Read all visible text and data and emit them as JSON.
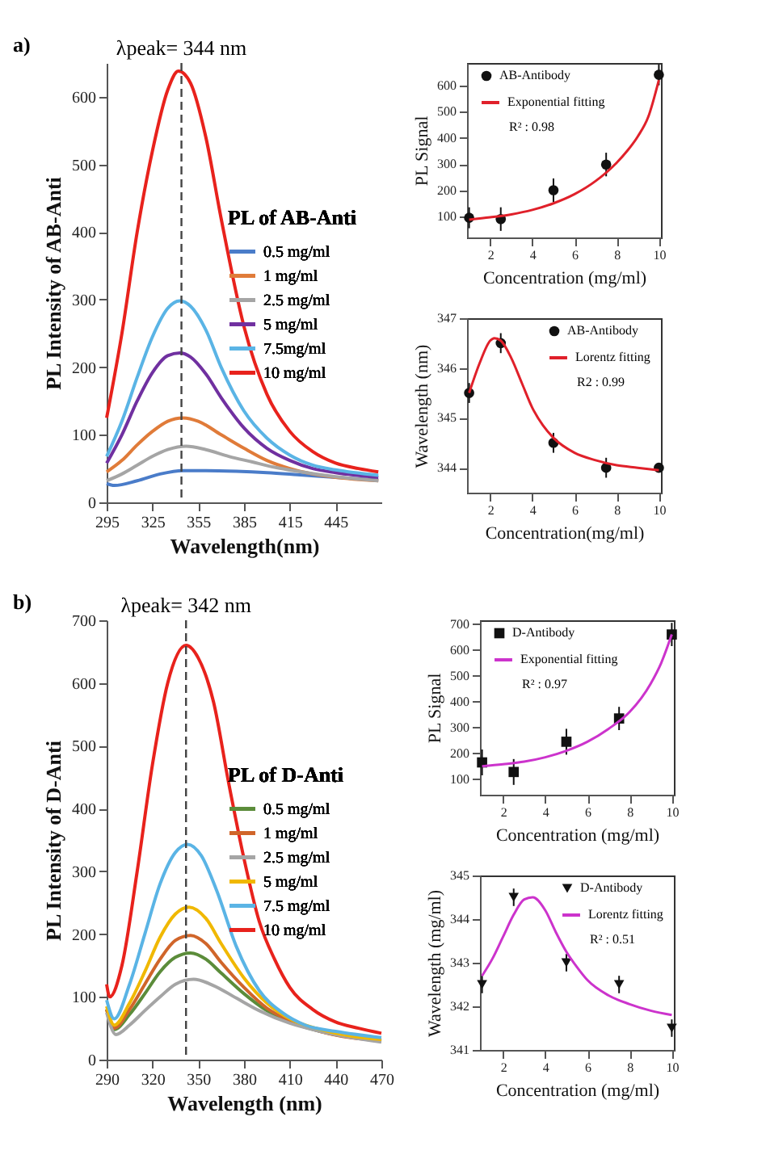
{
  "chart_data": [
    {
      "type": "line",
      "xlabel": "Wavelength(nm)",
      "ylabel": "PL Intensity of AB-Anti",
      "legend_title": "PL of AB-Anti",
      "legend": "right",
      "grid": false,
      "xlim": [
        295,
        475
      ],
      "xticks": [
        295,
        325,
        355,
        385,
        415,
        445
      ],
      "ylim": [
        0,
        650
      ],
      "yticks": [
        0,
        100,
        200,
        300,
        400,
        500,
        600
      ],
      "ref_lines": [
        {
          "axis": "x",
          "value": 344,
          "label": "λpeak= 344 nm",
          "line_style": "dashed"
        }
      ],
      "annotations": [
        "a)"
      ],
      "series": [
        {
          "name": "0.5 mg/ml",
          "color": "#4a7cc9",
          "x": [
            295,
            300,
            315,
            330,
            345,
            360,
            380,
            400,
            420,
            445,
            473
          ],
          "values": [
            28,
            25,
            32,
            42,
            47,
            47,
            46,
            44,
            41,
            37,
            33
          ]
        },
        {
          "name": "1 mg/ml",
          "color": "#e07b39",
          "x": [
            295,
            305,
            315,
            325,
            335,
            345,
            355,
            370,
            385,
            400,
            415,
            430,
            445,
            473
          ],
          "values": [
            45,
            62,
            85,
            105,
            120,
            125,
            120,
            100,
            80,
            62,
            50,
            42,
            37,
            32
          ]
        },
        {
          "name": "2.5 mg/ml",
          "color": "#a5a5a5",
          "x": [
            295,
            305,
            315,
            325,
            335,
            347,
            360,
            375,
            390,
            405,
            420,
            445,
            473
          ],
          "values": [
            32,
            42,
            55,
            68,
            78,
            83,
            78,
            68,
            60,
            52,
            46,
            38,
            32
          ]
        },
        {
          "name": "5 mg/ml",
          "color": "#7030a0",
          "x": [
            295,
            305,
            315,
            325,
            335,
            343,
            350,
            360,
            370,
            385,
            400,
            415,
            430,
            445,
            473
          ],
          "values": [
            58,
            100,
            150,
            192,
            217,
            221,
            215,
            190,
            155,
            110,
            80,
            62,
            50,
            44,
            37
          ]
        },
        {
          "name": "7.5mg/ml",
          "color": "#5ab4e5",
          "x": [
            295,
            305,
            315,
            325,
            335,
            343,
            350,
            360,
            370,
            385,
            400,
            415,
            430,
            445,
            473
          ],
          "values": [
            68,
            120,
            185,
            245,
            287,
            298,
            290,
            255,
            200,
            135,
            95,
            70,
            55,
            48,
            40
          ]
        },
        {
          "name": "10 mg/ml",
          "color": "#e8221c",
          "x": [
            295,
            305,
            315,
            325,
            335,
            342,
            350,
            360,
            370,
            385,
            400,
            415,
            430,
            445,
            460,
            473
          ],
          "values": [
            125,
            250,
            400,
            520,
            610,
            638,
            620,
            540,
            420,
            260,
            160,
            105,
            75,
            58,
            50,
            45
          ]
        }
      ]
    },
    {
      "type": "scatter",
      "xlabel": "Concentration (mg/ml)",
      "ylabel": "PL Signal",
      "legend": "top left",
      "grid": false,
      "xlim": [
        0.9,
        10.1
      ],
      "xticks": [
        2,
        4,
        6,
        8,
        10
      ],
      "ylim": [
        20,
        685
      ],
      "yticks": [
        100,
        200,
        300,
        400,
        500,
        600
      ],
      "annotations": [
        "R² : 0.98"
      ],
      "series": [
        {
          "name": "AB-Antibody",
          "color": "#111111",
          "marker": "circle",
          "x": [
            1,
            2.5,
            5,
            7.5,
            10
          ],
          "values": [
            95,
            90,
            200,
            298,
            640
          ],
          "errors": [
            40,
            45,
            45,
            45,
            40
          ]
        },
        {
          "name": "Exponential fitting",
          "type": "line",
          "marker": "none",
          "color": "#e0202a",
          "x": [
            1,
            2,
            3,
            4,
            5,
            6,
            7,
            8,
            8.5,
            9,
            9.5,
            10
          ],
          "values": [
            88,
            97,
            108,
            125,
            150,
            185,
            235,
            305,
            350,
            405,
            480,
            620
          ]
        }
      ]
    },
    {
      "type": "scatter",
      "xlabel": "Concentration(mg/ml)",
      "ylabel": "Wavelength (nm)",
      "legend": "top right",
      "grid": false,
      "xlim": [
        0.9,
        10.1
      ],
      "xticks": [
        2,
        4,
        6,
        8,
        10
      ],
      "ylim": [
        343.5,
        347
      ],
      "yticks": [
        344,
        345,
        346,
        347
      ],
      "annotations": [
        "R2 : 0.99"
      ],
      "series": [
        {
          "name": "AB-Antibody",
          "color": "#111111",
          "marker": "circle",
          "x": [
            1,
            2.5,
            5,
            7.5,
            10
          ],
          "values": [
            345.5,
            346.5,
            344.5,
            344,
            344
          ],
          "errors": [
            0.2,
            0.2,
            0.2,
            0.2,
            null
          ]
        },
        {
          "name": "Lorentz fitting",
          "type": "line",
          "marker": "none",
          "color": "#e0202a",
          "x": [
            1,
            1.5,
            2,
            2.2,
            2.5,
            3,
            3.5,
            4,
            4.5,
            5,
            6,
            7,
            8,
            9,
            10
          ],
          "values": [
            345.5,
            346.1,
            346.55,
            346.6,
            346.55,
            346.2,
            345.7,
            345.2,
            344.85,
            344.6,
            344.3,
            344.15,
            344.05,
            344.0,
            343.95
          ]
        }
      ]
    },
    {
      "type": "line",
      "xlabel": "Wavelength (nm)",
      "ylabel": "PL Intensity of D-Anti",
      "legend_title": "PL of D-Anti",
      "legend": "right",
      "grid": false,
      "xlim": [
        290,
        470
      ],
      "xticks": [
        290,
        320,
        350,
        380,
        410,
        440,
        470
      ],
      "ylim": [
        0,
        700
      ],
      "yticks": [
        0,
        100,
        200,
        300,
        400,
        500,
        600,
        700
      ],
      "ref_lines": [
        {
          "axis": "x",
          "value": 342,
          "label": "λpeak= 342 nm",
          "line_style": "dashed"
        }
      ],
      "annotations": [
        "b)"
      ],
      "series": [
        {
          "name": "0.5 mg/ml",
          "color": "#5b8c3a",
          "x": [
            290,
            295,
            305,
            315,
            325,
            335,
            345,
            355,
            365,
            380,
            395,
            410,
            430,
            470
          ],
          "values": [
            80,
            48,
            72,
            105,
            140,
            163,
            170,
            160,
            138,
            105,
            78,
            60,
            45,
            30
          ]
        },
        {
          "name": "1 mg/ml",
          "color": "#d0652a",
          "x": [
            290,
            295,
            305,
            315,
            325,
            335,
            345,
            355,
            365,
            380,
            395,
            410,
            430,
            470
          ],
          "values": [
            80,
            50,
            80,
            120,
            160,
            190,
            198,
            185,
            155,
            115,
            82,
            62,
            45,
            30
          ]
        },
        {
          "name": "2.5 mg/ml",
          "color": "#a5a5a5",
          "x": [
            290,
            296,
            305,
            315,
            325,
            335,
            347,
            360,
            375,
            390,
            410,
            430,
            470
          ],
          "values": [
            75,
            40,
            55,
            78,
            100,
            120,
            128,
            118,
            98,
            78,
            58,
            45,
            28
          ]
        },
        {
          "name": "5 mg/ml",
          "color": "#f0b800",
          "x": [
            290,
            295,
            305,
            315,
            325,
            335,
            344,
            355,
            365,
            380,
            395,
            410,
            430,
            470
          ],
          "values": [
            85,
            55,
            90,
            140,
            195,
            232,
            243,
            225,
            185,
            130,
            90,
            65,
            48,
            32
          ]
        },
        {
          "name": "7.5 mg/ml",
          "color": "#5ab4e5",
          "x": [
            290,
            295,
            305,
            315,
            325,
            335,
            343,
            352,
            362,
            375,
            390,
            405,
            420,
            440,
            470
          ],
          "values": [
            95,
            65,
            120,
            200,
            280,
            330,
            343,
            325,
            270,
            180,
            110,
            75,
            55,
            45,
            35
          ]
        },
        {
          "name": "10 mg/ml",
          "color": "#e8221c",
          "x": [
            290,
            292,
            300,
            310,
            320,
            330,
            342,
            350,
            360,
            370,
            380,
            390,
            400,
            410,
            425,
            440,
            455,
            470
          ],
          "values": [
            120,
            100,
            150,
            300,
            470,
            600,
            660,
            640,
            570,
            440,
            320,
            220,
            160,
            115,
            80,
            60,
            50,
            42
          ]
        }
      ]
    },
    {
      "type": "scatter",
      "xlabel": "Concentration (mg/ml)",
      "ylabel": "PL Signal",
      "legend": "top left",
      "grid": false,
      "xlim": [
        0.9,
        10.1
      ],
      "xticks": [
        2,
        4,
        6,
        8,
        10
      ],
      "ylim": [
        40,
        715
      ],
      "yticks": [
        100,
        200,
        300,
        400,
        500,
        600,
        700
      ],
      "annotations": [
        "R² : 0.97"
      ],
      "series": [
        {
          "name": "D-Antibody",
          "color": "#111111",
          "marker": "square",
          "x": [
            1,
            2.5,
            5,
            7.5,
            10
          ],
          "values": [
            165,
            128,
            245,
            335,
            660
          ],
          "errors": [
            50,
            50,
            50,
            45,
            45
          ]
        },
        {
          "name": "Exponential fitting",
          "type": "line",
          "marker": "none",
          "color": "#cc33cc",
          "x": [
            1,
            2,
            3,
            4,
            5,
            6,
            7,
            8,
            9,
            9.5,
            10
          ],
          "values": [
            150,
            158,
            168,
            185,
            210,
            245,
            295,
            360,
            470,
            550,
            660
          ]
        }
      ]
    },
    {
      "type": "scatter",
      "xlabel": "Concentration (mg/ml)",
      "ylabel": "Wavelength (mg/ml)",
      "legend": "top right",
      "grid": false,
      "xlim": [
        0.9,
        10.1
      ],
      "xticks": [
        2,
        4,
        6,
        8,
        10
      ],
      "ylim": [
        341,
        345
      ],
      "yticks": [
        341,
        342,
        343,
        344,
        345
      ],
      "annotations": [
        "R² : 0.51"
      ],
      "series": [
        {
          "name": "D-Antibody",
          "color": "#111111",
          "marker": "triangle",
          "x": [
            1,
            2.5,
            5,
            7.5,
            10
          ],
          "values": [
            342.5,
            344.5,
            343,
            342.5,
            341.5
          ],
          "errors": [
            0.2,
            0.2,
            0.2,
            0.2,
            0.2
          ]
        },
        {
          "name": "Lorentz fitting",
          "type": "line",
          "marker": "none",
          "color": "#cc33cc",
          "x": [
            1,
            1.5,
            2,
            2.5,
            3,
            3.4,
            4,
            4.5,
            5,
            5.5,
            6,
            7,
            8,
            9,
            10
          ],
          "values": [
            342.7,
            343.1,
            343.6,
            344.1,
            344.45,
            344.5,
            344.2,
            343.7,
            343.25,
            342.9,
            342.6,
            342.25,
            342.05,
            341.9,
            341.8
          ]
        }
      ]
    }
  ]
}
